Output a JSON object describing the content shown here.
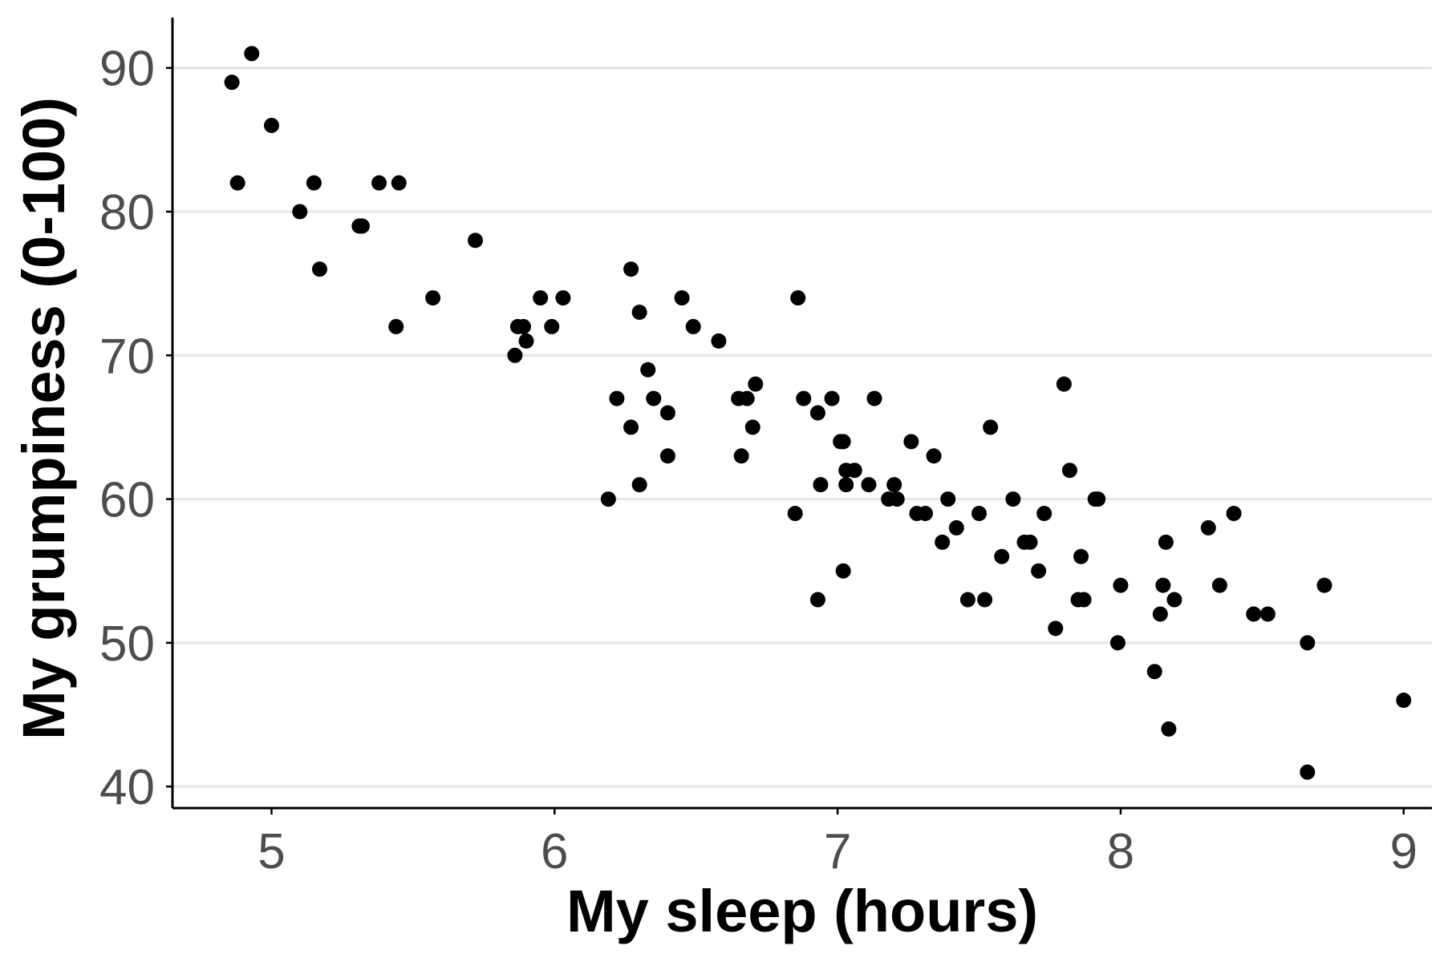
{
  "chart_data": {
    "type": "scatter",
    "xlabel": "My sleep (hours)",
    "ylabel": "My grumpiness (0-100)",
    "xlim": [
      4.65,
      9.1
    ],
    "ylim": [
      38.5,
      93.5
    ],
    "xticks": [
      5,
      6,
      7,
      8,
      9
    ],
    "yticks": [
      40,
      50,
      60,
      70,
      80,
      90
    ],
    "grid": "horizontal",
    "point_color": "#000000",
    "points": [
      [
        4.86,
        89
      ],
      [
        4.93,
        91
      ],
      [
        4.88,
        82
      ],
      [
        5.0,
        86
      ],
      [
        5.1,
        80
      ],
      [
        5.15,
        82
      ],
      [
        5.17,
        76
      ],
      [
        5.31,
        79
      ],
      [
        5.32,
        79
      ],
      [
        5.38,
        82
      ],
      [
        5.45,
        82
      ],
      [
        5.44,
        72
      ],
      [
        5.57,
        74
      ],
      [
        5.72,
        78
      ],
      [
        5.87,
        72
      ],
      [
        5.89,
        72
      ],
      [
        5.86,
        70
      ],
      [
        5.9,
        71
      ],
      [
        5.95,
        74
      ],
      [
        5.99,
        72
      ],
      [
        6.03,
        74
      ],
      [
        6.19,
        60
      ],
      [
        6.22,
        67
      ],
      [
        6.27,
        76
      ],
      [
        6.27,
        65
      ],
      [
        6.3,
        73
      ],
      [
        6.3,
        61
      ],
      [
        6.33,
        69
      ],
      [
        6.35,
        67
      ],
      [
        6.4,
        66
      ],
      [
        6.4,
        63
      ],
      [
        6.45,
        74
      ],
      [
        6.49,
        72
      ],
      [
        6.58,
        71
      ],
      [
        6.65,
        67
      ],
      [
        6.68,
        67
      ],
      [
        6.66,
        63
      ],
      [
        6.7,
        65
      ],
      [
        6.71,
        68
      ],
      [
        6.85,
        59
      ],
      [
        6.86,
        74
      ],
      [
        6.88,
        67
      ],
      [
        6.93,
        66
      ],
      [
        6.94,
        61
      ],
      [
        6.93,
        53
      ],
      [
        6.98,
        67
      ],
      [
        7.01,
        64
      ],
      [
        7.02,
        64
      ],
      [
        7.03,
        62
      ],
      [
        7.06,
        62
      ],
      [
        7.02,
        55
      ],
      [
        7.03,
        61
      ],
      [
        7.11,
        61
      ],
      [
        7.13,
        67
      ],
      [
        7.18,
        60
      ],
      [
        7.2,
        61
      ],
      [
        7.21,
        60
      ],
      [
        7.26,
        64
      ],
      [
        7.28,
        59
      ],
      [
        7.31,
        59
      ],
      [
        7.34,
        63
      ],
      [
        7.37,
        57
      ],
      [
        7.39,
        60
      ],
      [
        7.42,
        58
      ],
      [
        7.46,
        53
      ],
      [
        7.5,
        59
      ],
      [
        7.52,
        53
      ],
      [
        7.54,
        65
      ],
      [
        7.58,
        56
      ],
      [
        7.62,
        60
      ],
      [
        7.66,
        57
      ],
      [
        7.68,
        57
      ],
      [
        7.71,
        55
      ],
      [
        7.73,
        59
      ],
      [
        7.77,
        51
      ],
      [
        7.8,
        68
      ],
      [
        7.82,
        62
      ],
      [
        7.85,
        53
      ],
      [
        7.86,
        56
      ],
      [
        7.87,
        53
      ],
      [
        7.91,
        60
      ],
      [
        7.92,
        60
      ],
      [
        7.99,
        50
      ],
      [
        8.0,
        54
      ],
      [
        8.12,
        48
      ],
      [
        8.14,
        52
      ],
      [
        8.15,
        54
      ],
      [
        8.16,
        57
      ],
      [
        8.17,
        44
      ],
      [
        8.19,
        53
      ],
      [
        8.31,
        58
      ],
      [
        8.35,
        54
      ],
      [
        8.4,
        59
      ],
      [
        8.47,
        52
      ],
      [
        8.52,
        52
      ],
      [
        8.66,
        50
      ],
      [
        8.66,
        41
      ],
      [
        8.72,
        54
      ],
      [
        9.0,
        46
      ]
    ]
  }
}
